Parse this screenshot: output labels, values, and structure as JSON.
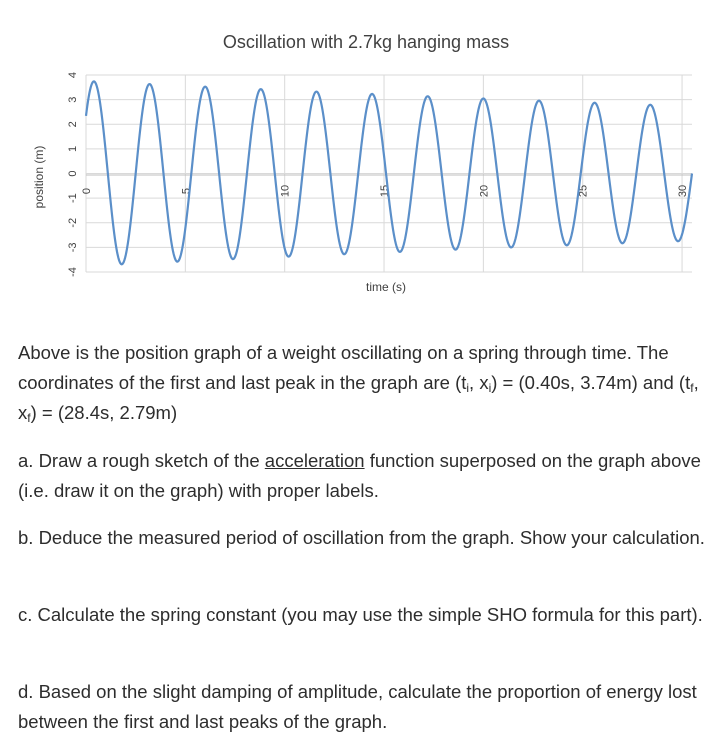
{
  "chart_data": {
    "type": "line",
    "title": "Oscillation with 2.7kg hanging mass",
    "xlabel": "time (s)",
    "ylabel": "position (m)",
    "xlim": [
      0,
      30.5
    ],
    "ylim": [
      -4,
      4
    ],
    "x_ticks": [
      0,
      5,
      10,
      15,
      20,
      25,
      30
    ],
    "y_ticks": [
      4,
      3,
      2,
      1,
      0,
      -1,
      -2,
      -3,
      -4
    ],
    "grid": true,
    "legend": "none",
    "line_color": "#5b8fc9",
    "series": [
      {
        "x": [
          0.4,
          2.82,
          5.4,
          7.8,
          10.4,
          12.8,
          15.4,
          17.8,
          20.4,
          22.8,
          25.4,
          27.8,
          28.4
        ],
        "y": [
          3.74,
          -3.74,
          3.6,
          -3.6,
          3.45,
          -3.45,
          3.3,
          -3.3,
          3.1,
          -3.1,
          2.95,
          -2.95,
          2.79
        ]
      }
    ]
  },
  "problem": {
    "intro": {
      "p1": "Above is the position graph of a weight oscillating on a spring through time. The coordinates of the first and last peak in the graph are (t",
      "s1": "i",
      "p2": ", x",
      "s2": "i",
      "p3": ") = (0.40s, 3.74m) and (t",
      "s3": "f",
      "p4": ", x",
      "s4": "f",
      "p5": ") = (28.4s, 2.79m)"
    },
    "a": {
      "before": "a. Draw a rough sketch of the ",
      "underlined": "acceleration",
      "after": " function superposed on the graph above (i.e. draw it on the graph) with proper labels."
    },
    "b": "b. Deduce the measured period of oscillation from the graph. Show your calculation.",
    "c": "c. Calculate the spring constant (you may use the simple SHO formula for this part).",
    "d": "d. Based on the slight damping of amplitude, calculate the proportion of energy lost between the first and last peaks of the graph."
  }
}
